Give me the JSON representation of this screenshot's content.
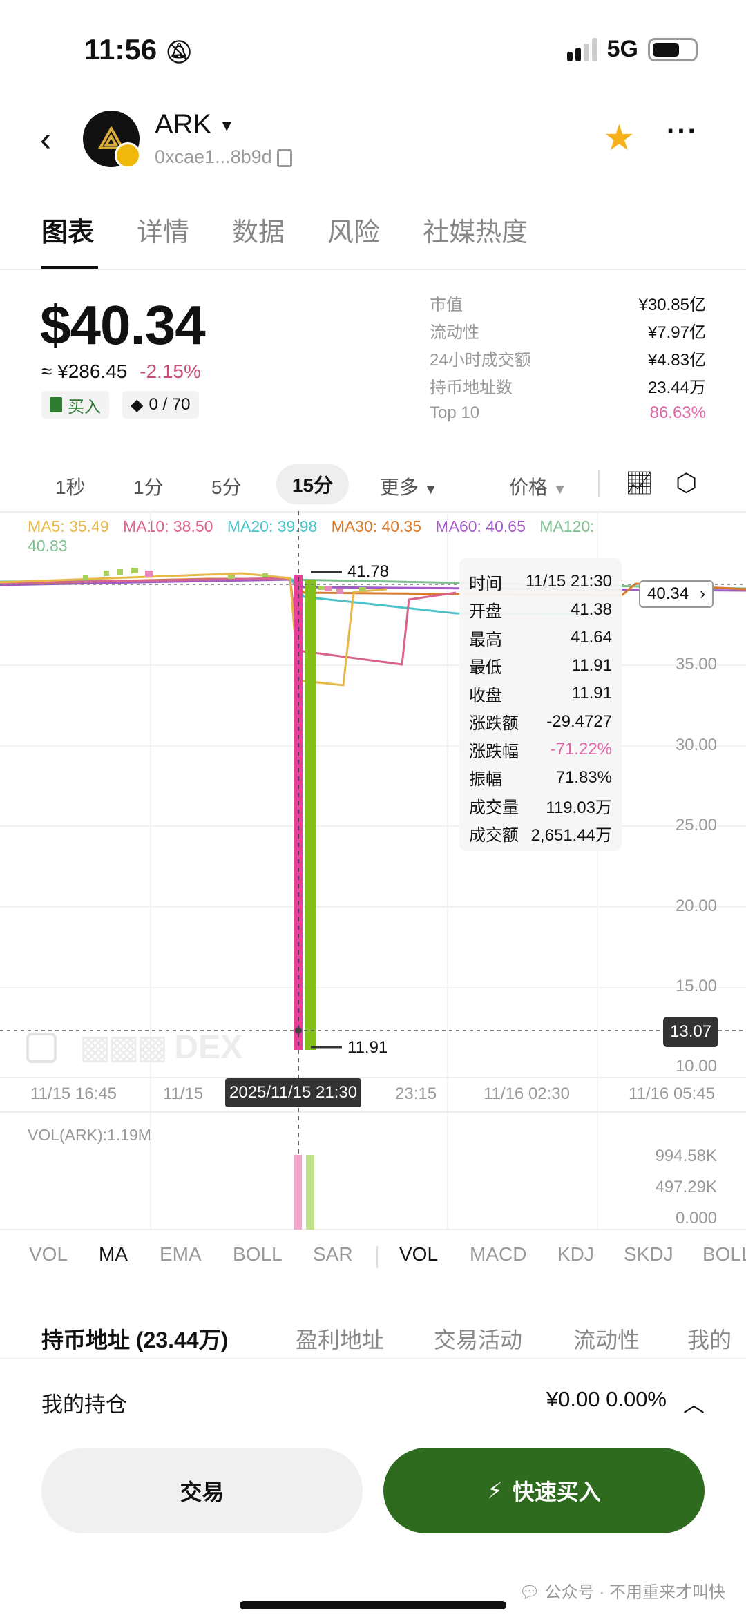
{
  "status_bar": {
    "time": "11:56",
    "network": "5G"
  },
  "header": {
    "token": "ARK",
    "address": "0xcae1...8b9d",
    "icons": [
      "back-icon",
      "copy-icon",
      "star-icon",
      "more-icon"
    ],
    "star_color": "#f5b01c"
  },
  "tabs": [
    "图表",
    "详情",
    "数据",
    "风险",
    "社媒热度"
  ],
  "price": {
    "usd": "$40.34",
    "cny": "≈ ¥286.45",
    "change": "-2.15%",
    "buy_label": "买入",
    "counter": "0 / 70"
  },
  "stats": [
    {
      "label": "市值",
      "value": "¥30.85亿"
    },
    {
      "label": "流动性",
      "value": "¥7.97亿"
    },
    {
      "label": "24小时成交额",
      "value": "¥4.83亿"
    },
    {
      "label": "持币地址数",
      "value": "23.44万"
    },
    {
      "label": "Top 10",
      "value": "86.63%"
    }
  ],
  "intervals": {
    "items": [
      "1秒",
      "1分",
      "5分",
      "15分"
    ],
    "active": "15分",
    "more": "更多",
    "price_mode": "价格"
  },
  "ma_legend": [
    {
      "label": "MA5: 35.49",
      "color": "#e8b84a"
    },
    {
      "label": "MA10: 38.50",
      "color": "#d9638f"
    },
    {
      "label": "MA20: 39.98",
      "color": "#4cc3c9"
    },
    {
      "label": "MA30: 40.35",
      "color": "#d97a2b"
    },
    {
      "label": "MA60: 40.65",
      "color": "#a35bc4"
    },
    {
      "label": "MA120:",
      "color": "#7dbf8f"
    },
    {
      "label": "40.83",
      "color": "#7dbf8f"
    }
  ],
  "chart": {
    "y_ticks": [
      "35.00",
      "30.00",
      "25.00",
      "20.00",
      "15.00",
      "10.00"
    ],
    "x_ticks": [
      "11/15 16:45",
      "11/15",
      "23:15",
      "11/16 02:30",
      "11/16 05:45"
    ],
    "crosshair_time": "2025/11/15 21:30",
    "high_marker": "41.78",
    "low_marker": "11.91",
    "last_price": "40.34",
    "crosshair_price": "13.07",
    "watermark": "DEX",
    "up_color": "#84c01b",
    "down_color": "#e8409a"
  },
  "tooltip": [
    {
      "label": "时间",
      "value": "11/15 21:30"
    },
    {
      "label": "开盘",
      "value": "41.38"
    },
    {
      "label": "最高",
      "value": "41.64"
    },
    {
      "label": "最低",
      "value": "11.91"
    },
    {
      "label": "收盘",
      "value": "11.91"
    },
    {
      "label": "涨跌额",
      "value": "-29.4727"
    },
    {
      "label": "涨跌幅",
      "value": "-71.22%"
    },
    {
      "label": "振幅",
      "value": "71.83%"
    },
    {
      "label": "成交量",
      "value": "119.03万"
    },
    {
      "label": "成交额",
      "value": "2,651.44万"
    }
  ],
  "volume": {
    "label": "VOL(ARK):1.19M",
    "ticks": [
      "994.58K",
      "497.29K",
      "0.000"
    ]
  },
  "indicators": {
    "main": [
      "VOL",
      "MA",
      "EMA",
      "BOLL",
      "SAR"
    ],
    "main_active": "MA",
    "sub": [
      "VOL",
      "MACD",
      "KDJ",
      "SKDJ",
      "BOLL"
    ],
    "sub_active": "VOL"
  },
  "holder_tabs": [
    "持币地址 (23.44万)",
    "盈利地址",
    "交易活动",
    "流动性",
    "我的"
  ],
  "position": {
    "label": "我的持仓",
    "value": "¥0.00 0.00%"
  },
  "actions": {
    "trade": "交易",
    "quick_buy": "快速买入",
    "quick_buy_color": "#2e6b1e"
  },
  "watermark_footer": "公众号 · 不用重来才叫快"
}
